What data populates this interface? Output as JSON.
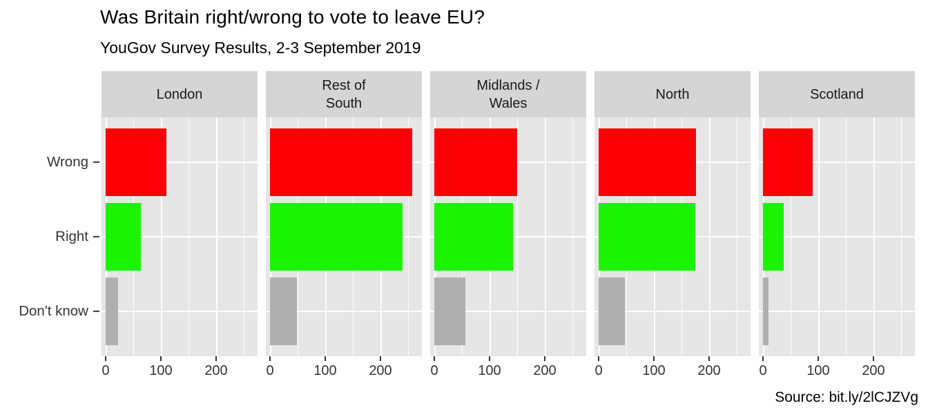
{
  "chart_data": {
    "type": "bar",
    "orientation": "horizontal",
    "title": "Was Britain right/wrong to vote to leave EU?",
    "subtitle": "YouGov Survey Results, 2-3 September 2019",
    "source": "Source: bit.ly/2lCJZVg",
    "legend": "none",
    "grid": true,
    "categories": [
      "Wrong",
      "Right",
      "Don't know"
    ],
    "bar_colors": [
      "#FB0007",
      "#1BF400",
      "#AFAFAF"
    ],
    "facets": [
      {
        "label": "London",
        "values": [
          110,
          64,
          23
        ]
      },
      {
        "label": "Rest of\nSouth",
        "values": [
          257,
          240,
          49
        ]
      },
      {
        "label": "Midlands /\nWales",
        "values": [
          150,
          143,
          56
        ]
      },
      {
        "label": "North",
        "values": [
          176,
          175,
          48
        ]
      },
      {
        "label": "Scotland",
        "values": [
          90,
          38,
          10
        ]
      }
    ],
    "x_ticks": [
      {
        "label": "0",
        "value": 0
      },
      {
        "label": "100",
        "value": 100
      },
      {
        "label": "200",
        "value": 200
      }
    ],
    "x_minor_gridlines": [
      50,
      150,
      250
    ],
    "x_major_gridlines": [
      0,
      100,
      200
    ],
    "xlim": [
      0,
      275
    ],
    "colors": {
      "panel_background": "#E6E6E6",
      "strip_background": "#D5D5D5",
      "gridline": "#FFFFFF",
      "axis_text": "#333333",
      "title_text": "#000000"
    }
  }
}
